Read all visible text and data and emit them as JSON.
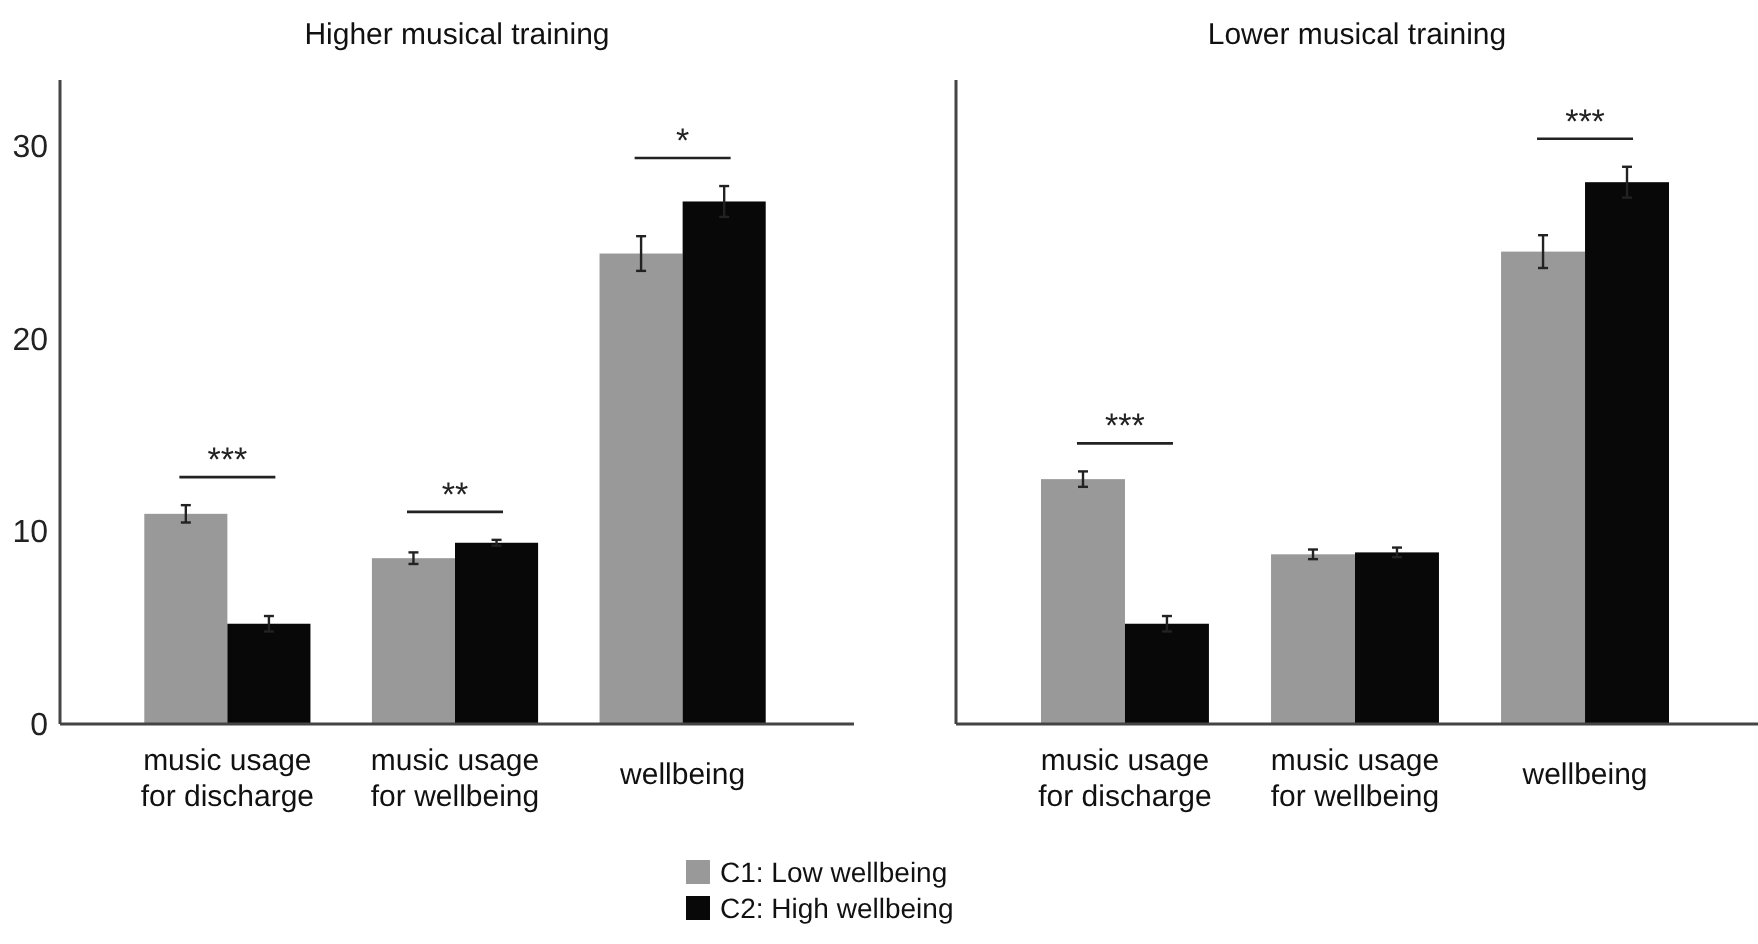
{
  "chart_data": [
    {
      "type": "bar",
      "title": "Higher musical training",
      "categories": [
        "music usage for discharge",
        "music usage for wellbeing",
        "wellbeing"
      ],
      "ylim": [
        0,
        33.4
      ],
      "yticks": [
        0,
        10,
        20,
        30
      ],
      "legend": "bottom",
      "grid": false,
      "series": [
        {
          "name": "C1: Low wellbeing",
          "color": "#999999",
          "values": [
            10.9,
            8.6,
            24.4
          ],
          "errors": [
            0.45,
            0.3,
            0.9
          ]
        },
        {
          "name": "C2: High wellbeing",
          "color": "#080808",
          "values": [
            5.2,
            9.4,
            27.1
          ],
          "errors": [
            0.4,
            0.15,
            0.8
          ]
        }
      ],
      "annotations": [
        "***",
        "**",
        "*"
      ]
    },
    {
      "type": "bar",
      "title": "Lower musical training",
      "categories": [
        "music usage for discharge",
        "music usage for wellbeing",
        "wellbeing"
      ],
      "ylim": [
        0,
        33.4
      ],
      "yticks": [
        0,
        10,
        20,
        30
      ],
      "tick_labels": "x",
      "grid": false,
      "series": [
        {
          "color": "#999999",
          "values": [
            12.7,
            8.8,
            24.5
          ],
          "errors": [
            0.4,
            0.25,
            0.85
          ]
        },
        {
          "color": "#080808",
          "values": [
            5.2,
            8.9,
            28.1
          ],
          "errors": [
            0.4,
            0.25,
            0.8
          ]
        }
      ],
      "annotations": [
        "***",
        "***"
      ]
    }
  ]
}
